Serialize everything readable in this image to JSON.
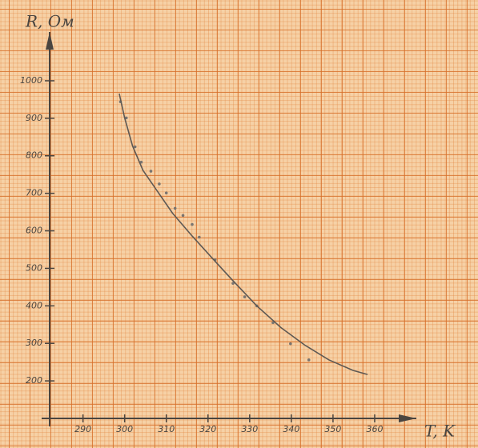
{
  "chart_data": {
    "type": "scatter",
    "ylabel": "R, Ом",
    "xlabel": "T, K",
    "xlim": [
      282,
      370
    ],
    "ylim": [
      100,
      1130
    ],
    "xticks": [
      290,
      300,
      310,
      320,
      330,
      340,
      350,
      360
    ],
    "yticks": [
      200,
      300,
      400,
      500,
      600,
      700,
      800,
      900,
      1000
    ],
    "series": [
      {
        "color": "#7a7570",
        "x": [
          299.0,
          300.4,
          302.5,
          304.0,
          306.3,
          308.3,
          310.0,
          312.1,
          314.0,
          316.2,
          317.9,
          321.7,
          326.0,
          328.8,
          331.7,
          335.6,
          339.8,
          344.2
        ],
        "values": [
          944,
          901,
          824,
          783,
          759,
          725,
          701,
          660,
          641,
          617,
          583,
          523,
          460,
          424,
          400,
          355,
          299,
          256
        ]
      },
      {
        "color": "#5e5954",
        "line": true,
        "x": [
          298.7,
          300.0,
          301.9,
          304.4,
          307.7,
          311.5,
          316.3,
          321.2,
          326.0,
          331.7,
          337.5,
          343.3,
          349.0,
          354.8,
          358.3
        ],
        "values": [
          966,
          901,
          826,
          761,
          708,
          647,
          585,
          525,
          467,
          400,
          342,
          295,
          256,
          228,
          217
        ]
      }
    ]
  }
}
